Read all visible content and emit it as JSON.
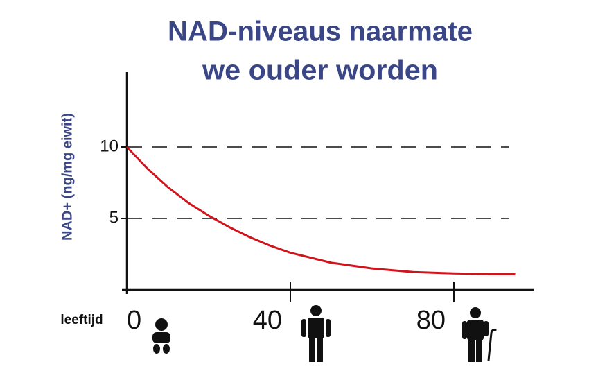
{
  "chart_data": {
    "type": "line",
    "title": [
      "NAD-niveaus naarmate",
      "we ouder worden"
    ],
    "y_label": "NAD+ (ng/mg eiwit)",
    "x_label": "leeftijd",
    "x": [
      0,
      5,
      10,
      15,
      20,
      25,
      30,
      35,
      40,
      50,
      60,
      70,
      80,
      90,
      95
    ],
    "series": [
      {
        "color": "#d0141c",
        "values": [
          10,
          8.5,
          7.2,
          6.1,
          5.2,
          4.4,
          3.7,
          3.1,
          2.6,
          1.9,
          1.5,
          1.25,
          1.15,
          1.1,
          1.1
        ]
      }
    ],
    "xlim": [
      0,
      100
    ],
    "ylim": [
      0,
      15
    ],
    "xticks": [
      0,
      40,
      80
    ],
    "yticks": [
      5,
      10
    ],
    "grid": true
  }
}
